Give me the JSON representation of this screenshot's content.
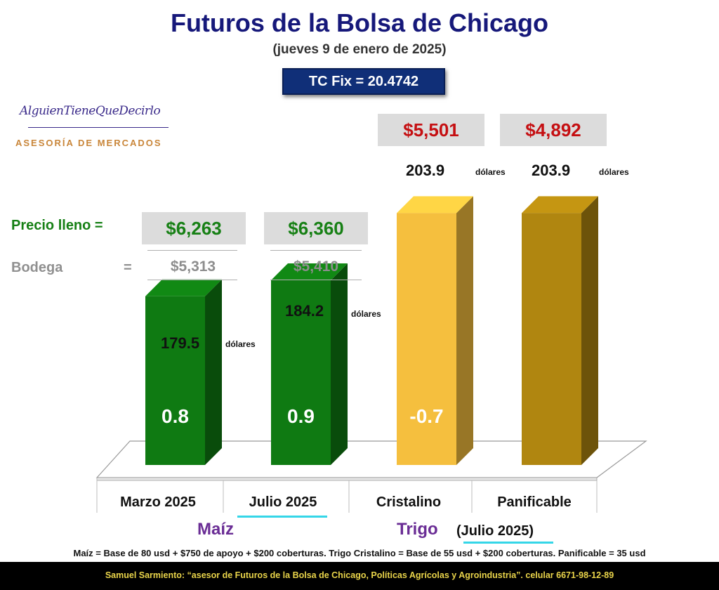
{
  "header": {
    "title": "Futuros de la Bolsa de Chicago",
    "subtitle": "(jueves 9 de enero de 2025)",
    "tc_fix": "TC Fix = 20.4742"
  },
  "logo": {
    "script": "AlguienTieneQueDecirlo",
    "text": "ASESORÍA DE MERCADOS"
  },
  "labels": {
    "precio_lleno": "Precio lleno =",
    "bodega": "Bodega",
    "bodega_eq": "=",
    "unit": "dólares"
  },
  "colors": {
    "maiz_bar": "#0f7a12",
    "cristalino_bar": "#f5bf3e",
    "panificable_bar": "#b08610",
    "price_red": "#c50f12",
    "price_green": "#178015",
    "group_purple": "#6a2d95",
    "title_navy": "#16187a"
  },
  "chart_data": {
    "type": "bar",
    "categories": [
      "Marzo 2025",
      "Julio 2025",
      "Cristalino",
      "Panificable"
    ],
    "series": [
      {
        "values": [
          179.5,
          184.2,
          203.9,
          203.9
        ]
      }
    ],
    "bar_labels": [
      "0.8",
      "0.9",
      "-0.7",
      ""
    ],
    "price_labels": [
      "179.5",
      "184.2",
      "203.9",
      "203.9"
    ],
    "precio_lleno": [
      "$6,263",
      "$6,360",
      "",
      ""
    ],
    "bodega": [
      "$5,313",
      "$5,410",
      "",
      ""
    ],
    "trigo_prices": [
      "$5,501",
      "$4,892"
    ],
    "groups": [
      {
        "name": "Maíz",
        "categories": [
          "Marzo 2025",
          "Julio 2025"
        ]
      },
      {
        "name": "Trigo",
        "subtitle": "(Julio 2025)",
        "categories": [
          "Cristalino",
          "Panificable"
        ]
      }
    ],
    "unit": "dólares"
  },
  "footnote": "Maíz = Base de 80 usd + $750 de apoyo + $200 coberturas. Trigo Cristalino = Base de 55 usd + $200 coberturas. Panificable = 35 usd",
  "footer": {
    "name": "Samuel Sarmiento:",
    "description": " “asesor de Futuros de la Bolsa de Chicago, Políticas Agrícolas y Agroindustria”. ",
    "phone": "celular 6671-98-12-89"
  }
}
